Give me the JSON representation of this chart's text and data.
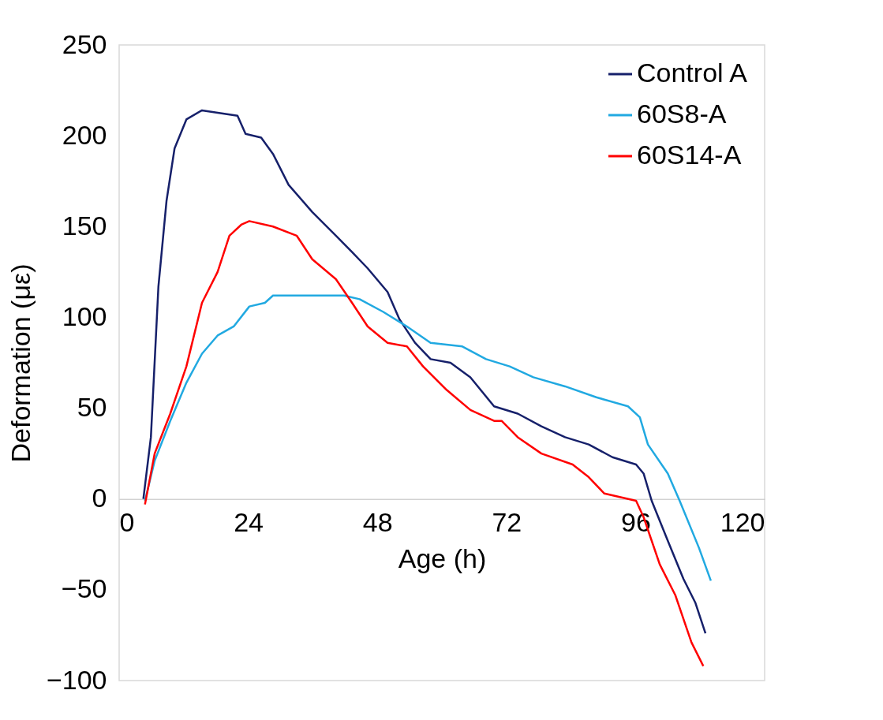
{
  "chart_data": {
    "type": "line",
    "xlabel": "Age (h)",
    "ylabel": "Deformation (με)",
    "xlim": [
      0,
      120
    ],
    "xticks": [
      0,
      24,
      48,
      72,
      96,
      120
    ],
    "ylim": [
      -100,
      250
    ],
    "yticks": [
      -100,
      -50,
      0,
      50,
      100,
      150,
      200,
      250
    ],
    "grid": false,
    "legend": "top right",
    "marker": "none",
    "line_style": "solid",
    "series": [
      {
        "name": "Control A",
        "color": "#16206a",
        "x": [
          4.5,
          5.9,
          7.3,
          8.8,
          10.3,
          12.5,
          15.4,
          19.8,
          22,
          23.5,
          26.4,
          28.6,
          31.5,
          35.9,
          40.3,
          43.3,
          46.2,
          49.9,
          52.1,
          55,
          57.9,
          61.6,
          65.3,
          69.7,
          74.1,
          78.5,
          82.9,
          87.3,
          91.7,
          96.1,
          97.5,
          99,
          102,
          104.9,
          107.1,
          109
        ],
        "values": [
          0,
          34,
          117,
          164,
          193,
          209,
          214,
          212,
          211,
          201,
          199,
          190,
          173,
          158,
          145,
          136,
          127,
          114,
          99,
          86,
          77,
          75,
          67,
          51,
          47,
          40,
          34,
          30,
          23,
          19,
          14,
          -1,
          -23,
          -44,
          -57,
          -74
        ]
      },
      {
        "name": "60S8-A",
        "color": "#21a9e1",
        "x": [
          4.8,
          6.6,
          9.5,
          12.5,
          15.4,
          18.3,
          21.3,
          24.2,
          27.1,
          28.6,
          34.5,
          41.8,
          44.7,
          49.1,
          53.5,
          57.9,
          63.8,
          68.2,
          72.6,
          77,
          82.9,
          88.7,
          94.6,
          96.8,
          98.3,
          102,
          104.2,
          107.8,
          110
        ],
        "values": [
          -1,
          21,
          43,
          64,
          80,
          90,
          95,
          106,
          108,
          112,
          112,
          112,
          110,
          103,
          95,
          86,
          84,
          77,
          73,
          67,
          62,
          56,
          51,
          45,
          30,
          14,
          -1,
          -27,
          -45
        ]
      },
      {
        "name": "60S14-A",
        "color": "#ff0000",
        "x": [
          4.8,
          6.6,
          9.5,
          12.5,
          15.4,
          18.3,
          20.5,
          22.7,
          24.2,
          28.6,
          33,
          35.9,
          40.3,
          43.3,
          46.2,
          49.9,
          53.5,
          56.5,
          60.9,
          65.3,
          69.7,
          71.1,
          74.1,
          78.5,
          84.3,
          87.3,
          90.2,
          96.1,
          97.5,
          100.5,
          103.4,
          106.4,
          108.6
        ],
        "values": [
          -3,
          25,
          47,
          73,
          108,
          125,
          145,
          151,
          153,
          150,
          145,
          132,
          121,
          108,
          95,
          86,
          84,
          73,
          60,
          49,
          43,
          43,
          34,
          25,
          19,
          12,
          3,
          -1,
          -10,
          -36,
          -53,
          -79,
          -92
        ]
      }
    ]
  }
}
